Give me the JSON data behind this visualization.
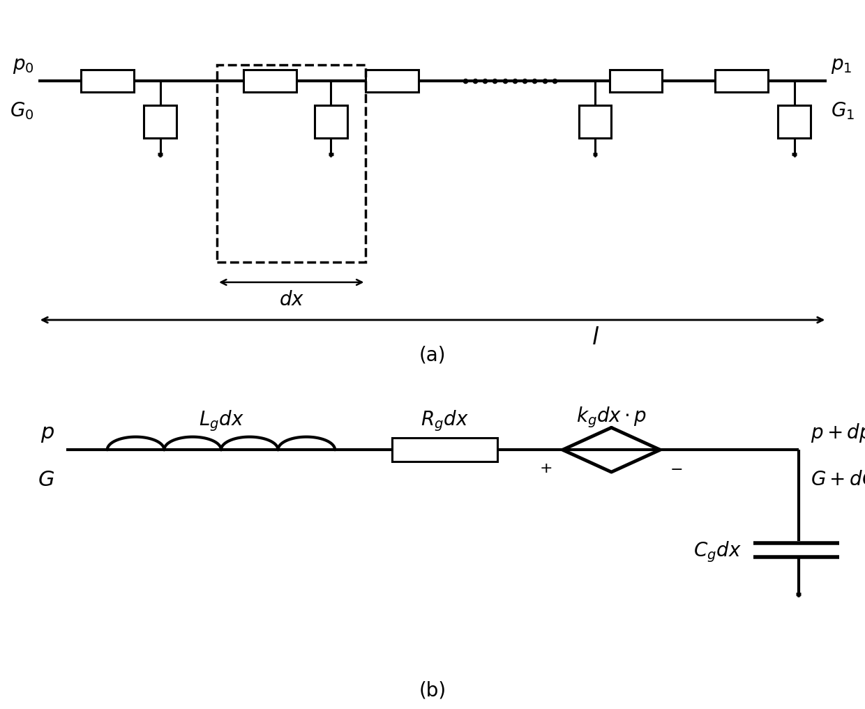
{
  "fig_width": 12.4,
  "fig_height": 10.17,
  "bg_color": "#ffffff",
  "line_color": "#000000",
  "lw_main": 3.0,
  "lw_comp": 2.2,
  "lw_dash": 2.5,
  "label_a": "(a)",
  "label_b": "(b)",
  "diagram_a": {
    "p0_label": "$p_0$",
    "G0_label": "$G_0$",
    "p1_label": "$p_1$",
    "G1_label": "$G_1$",
    "dx_label": "$dx$",
    "l_label": "$l$"
  },
  "diagram_b": {
    "p_label": "$p$",
    "G_label": "$G$",
    "Lg_label": "$L_g dx$",
    "Rg_label": "$R_g dx$",
    "kg_label": "$k_g dx \\cdot p$",
    "pp_label": "$p+dp$",
    "GdG_label": "$G+dG$",
    "Cg_label": "$C_g dx$"
  }
}
